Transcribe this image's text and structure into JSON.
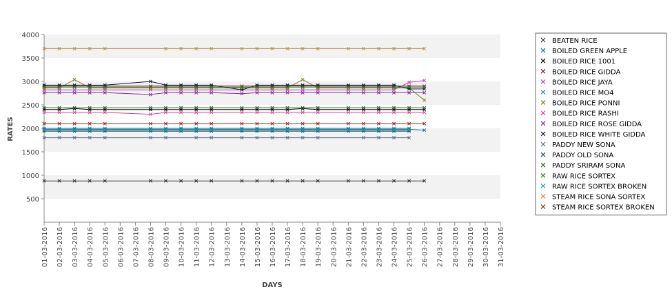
{
  "chart_data": {
    "type": "line",
    "title": "",
    "xlabel": "DAYS",
    "ylabel": "RATES",
    "ylim": [
      0,
      4000
    ],
    "yticks": [
      500,
      1000,
      1500,
      2000,
      2500,
      3000,
      3500,
      4000
    ],
    "grid": "alternating horizontal bands",
    "legend_position": "right",
    "categories": [
      "01-03-2016",
      "02-03-2016",
      "03-03-2016",
      "04-03-2016",
      "05-03-2016",
      "06-03-2016",
      "07-03-2016",
      "08-03-2016",
      "09-03-2016",
      "10-03-2016",
      "11-03-2016",
      "12-03-2016",
      "13-03-2016",
      "14-03-2016",
      "15-03-2016",
      "16-03-2016",
      "17-03-2016",
      "18-03-2016",
      "19-03-2016",
      "20-03-2016",
      "21-03-2016",
      "22-03-2016",
      "23-03-2016",
      "24-03-2016",
      "25-03-2016",
      "26-03-2016",
      "27-03-2016",
      "28-03-2016",
      "29-03-2016",
      "30-03-2016",
      "31-03-2016"
    ],
    "series": [
      {
        "name": "BEATEN RICE",
        "color": "#333333",
        "values": [
          880,
          880,
          880,
          880,
          880,
          null,
          null,
          880,
          880,
          880,
          880,
          880,
          null,
          880,
          880,
          880,
          880,
          880,
          880,
          null,
          880,
          880,
          880,
          880,
          880,
          880,
          null,
          null,
          null,
          null,
          null
        ]
      },
      {
        "name": "BOILED GREEN APPLE",
        "color": "#1a6e8f",
        "values": [
          1980,
          1980,
          1980,
          1980,
          1980,
          null,
          null,
          1980,
          1980,
          1980,
          1980,
          1980,
          null,
          1980,
          1980,
          1980,
          1980,
          1980,
          1980,
          null,
          1980,
          1980,
          1980,
          1980,
          1980,
          1960,
          null,
          null,
          null,
          null,
          null
        ]
      },
      {
        "name": "BOILED RICE 1001",
        "color": "#000000",
        "values": [
          2400,
          2400,
          2420,
          2400,
          2400,
          null,
          null,
          2400,
          2400,
          2400,
          2400,
          2400,
          null,
          2400,
          2400,
          2400,
          2400,
          2420,
          2400,
          null,
          2400,
          2400,
          2400,
          2400,
          2400,
          2400,
          null,
          null,
          null,
          null,
          null
        ]
      },
      {
        "name": "BOILED RICE GIDDA",
        "color": "#6b2a2a",
        "values": [
          2900,
          2900,
          2900,
          2900,
          2900,
          null,
          null,
          2900,
          2900,
          2900,
          2900,
          2900,
          null,
          2900,
          2900,
          2900,
          2900,
          2900,
          2900,
          null,
          2900,
          2900,
          2900,
          2900,
          2900,
          2900,
          null,
          null,
          null,
          null,
          null
        ]
      },
      {
        "name": "BOILED RICE JAYA",
        "color": "#c040c0",
        "values": [
          2820,
          2820,
          2820,
          2820,
          2820,
          null,
          null,
          2820,
          2820,
          2820,
          2820,
          2820,
          null,
          2820,
          2820,
          2820,
          2820,
          2820,
          2820,
          null,
          2820,
          2820,
          2820,
          2820,
          2980,
          3020,
          null,
          null,
          null,
          null,
          null
        ]
      },
      {
        "name": "BOILED RICE MO4",
        "color": "#1a7ea0",
        "values": [
          2000,
          2000,
          2000,
          2000,
          2000,
          null,
          null,
          2000,
          2000,
          2000,
          2000,
          2000,
          null,
          2000,
          2000,
          2000,
          2000,
          2000,
          2000,
          null,
          2000,
          2000,
          2000,
          2000,
          2000,
          null,
          null,
          null,
          null,
          null,
          null
        ]
      },
      {
        "name": "BOILED RICE PONNI",
        "color": "#808020",
        "values": [
          2860,
          2860,
          3040,
          2860,
          2860,
          null,
          null,
          2860,
          2860,
          2860,
          2860,
          2860,
          null,
          2860,
          2860,
          2860,
          2860,
          3040,
          2860,
          null,
          2860,
          2860,
          2860,
          2860,
          2860,
          2600,
          null,
          null,
          null,
          null,
          null
        ]
      },
      {
        "name": "BOILED RICE RASHI",
        "color": "#e0409a",
        "values": [
          2340,
          2340,
          2340,
          2340,
          2340,
          null,
          null,
          2300,
          2340,
          2340,
          2340,
          2340,
          null,
          2340,
          2340,
          2340,
          2340,
          2340,
          2340,
          null,
          2340,
          2340,
          2340,
          2340,
          2340,
          2340,
          null,
          null,
          null,
          null,
          null
        ]
      },
      {
        "name": "BOILED RICE ROSE GIDDA",
        "color": "#8a2aa0",
        "values": [
          2760,
          2760,
          2760,
          2760,
          2760,
          null,
          null,
          2720,
          2760,
          2760,
          2760,
          2760,
          null,
          2740,
          2760,
          2760,
          2760,
          2760,
          2760,
          null,
          2760,
          2760,
          2760,
          2760,
          2760,
          2760,
          null,
          null,
          null,
          null,
          null
        ]
      },
      {
        "name": "BOILED RICE WHITE GIDDA",
        "color": "#0a1a40",
        "values": [
          2920,
          2920,
          2920,
          2920,
          2920,
          null,
          null,
          3000,
          2920,
          2920,
          2920,
          2920,
          null,
          2820,
          2920,
          2920,
          2920,
          2920,
          2920,
          null,
          2920,
          2920,
          2920,
          2920,
          2840,
          2840,
          null,
          null,
          null,
          null,
          null
        ]
      },
      {
        "name": "PADDY NEW SONA",
        "color": "#5a6a80",
        "values": [
          1800,
          1800,
          1800,
          1800,
          1800,
          null,
          null,
          1800,
          1800,
          null,
          1800,
          1800,
          null,
          1800,
          1800,
          1800,
          1800,
          1800,
          1800,
          null,
          null,
          1800,
          1800,
          1800,
          1800,
          null,
          null,
          null,
          null,
          null,
          null
        ]
      },
      {
        "name": "PADDY OLD SONA",
        "color": "#1a4a5a",
        "values": [
          1940,
          1940,
          1940,
          1940,
          1940,
          null,
          null,
          1940,
          1940,
          1940,
          1940,
          1940,
          null,
          1940,
          1940,
          1940,
          1940,
          1940,
          1940,
          null,
          1940,
          1940,
          1940,
          1940,
          1940,
          null,
          null,
          null,
          null,
          null,
          null
        ]
      },
      {
        "name": "PADDY SRIRAM SONA",
        "color": "#2a6a2a",
        "values": [
          2440,
          2440,
          2440,
          2440,
          2440,
          null,
          null,
          2440,
          2440,
          2440,
          2440,
          2440,
          null,
          2440,
          2440,
          2440,
          2440,
          2440,
          2440,
          null,
          2440,
          2440,
          2440,
          2440,
          2440,
          2440,
          null,
          null,
          null,
          null,
          null
        ]
      },
      {
        "name": "RAW RICE SORTEX",
        "color": "#3a7a1a",
        "values": [
          2880,
          2880,
          2880,
          2880,
          2880,
          null,
          null,
          2880,
          2880,
          2880,
          2880,
          2880,
          null,
          2880,
          2880,
          2880,
          2880,
          2880,
          2880,
          null,
          2880,
          2880,
          2880,
          2880,
          2880,
          2880,
          null,
          null,
          null,
          null,
          null
        ]
      },
      {
        "name": "RAW RICE SORTEX BROKEN",
        "color": "#20a0b0",
        "values": [
          1960,
          1960,
          1960,
          1960,
          1960,
          null,
          null,
          1960,
          1960,
          1960,
          1960,
          1960,
          null,
          1960,
          1960,
          1960,
          1960,
          1960,
          1960,
          null,
          1960,
          1960,
          1960,
          1960,
          1960,
          null,
          null,
          null,
          null,
          null,
          null
        ]
      },
      {
        "name": "STEAM RICE SONA SORTEX",
        "color": "#c09040",
        "values": [
          3700,
          3700,
          3700,
          3700,
          3700,
          null,
          null,
          null,
          3700,
          3700,
          3700,
          3700,
          null,
          3700,
          3700,
          3700,
          3700,
          3700,
          3700,
          null,
          3700,
          3700,
          3700,
          3700,
          3700,
          3700,
          null,
          null,
          null,
          null,
          null
        ]
      },
      {
        "name": "STEAM RICE SORTEX BROKEN",
        "color": "#a02a1a",
        "values": [
          2100,
          2100,
          2100,
          2100,
          2100,
          null,
          null,
          2100,
          2100,
          2100,
          2100,
          2100,
          null,
          2100,
          2100,
          2100,
          2100,
          2100,
          2100,
          null,
          2100,
          2100,
          2100,
          2100,
          2100,
          2100,
          null,
          null,
          null,
          null,
          null
        ]
      }
    ]
  }
}
